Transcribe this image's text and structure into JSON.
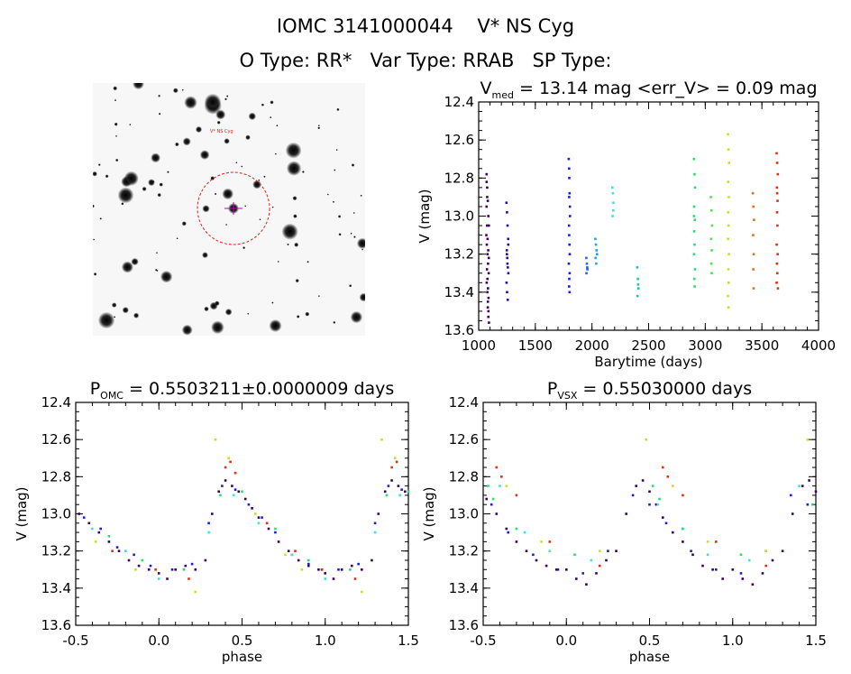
{
  "header": {
    "title": "IOMC 3141000044    V* NS Cyg",
    "subtitle": "O Type: RR*   Var Type: RRAB   SP Type:"
  },
  "finder": {
    "object_label": "V* NS Cyg"
  },
  "chart_data": [
    {
      "type": "scatter",
      "title_main": "V",
      "title_sub": "med",
      "title_rest": " = 13.14 mag <err_V> = 0.09 mag",
      "xlabel": "Barytime (days)",
      "ylabel": "V (mag)",
      "xlim": [
        1000,
        4000
      ],
      "ylim": [
        13.6,
        12.4
      ],
      "xticks": [
        "1000",
        "1500",
        "2000",
        "2500",
        "3000",
        "3500",
        "4000"
      ],
      "yticks": [
        "12.4",
        "12.6",
        "12.8",
        "13.0",
        "13.2",
        "13.4",
        "13.6"
      ],
      "series": [
        {
          "color": "#3c0060",
          "x": [
            1070,
            1075,
            1080,
            1085,
            1090,
            1068,
            1072,
            1078,
            1083,
            1088,
            1071,
            1076,
            1081,
            1086,
            1091,
            1069,
            1074,
            1079,
            1084,
            1089,
            1073,
            1077,
            1082,
            1087,
            1070,
            1075,
            1080,
            1085
          ],
          "y": [
            12.78,
            12.85,
            12.92,
            13.0,
            13.05,
            13.1,
            13.15,
            13.2,
            13.25,
            13.3,
            13.35,
            13.4,
            13.45,
            13.5,
            13.56,
            12.95,
            13.05,
            13.12,
            13.18,
            13.22,
            13.28,
            13.33,
            13.38,
            13.43,
            12.82,
            12.9,
            13.48,
            13.53
          ]
        },
        {
          "color": "#2a0aa0",
          "x": [
            1245,
            1250,
            1255,
            1260,
            1248,
            1252,
            1257,
            1262,
            1246,
            1251,
            1256,
            1261,
            1249,
            1254
          ],
          "y": [
            12.93,
            12.98,
            13.05,
            13.12,
            13.18,
            13.22,
            13.27,
            13.3,
            13.35,
            13.4,
            13.44,
            13.15,
            13.2,
            13.25
          ]
        },
        {
          "color": "#1d1dd8",
          "x": [
            1795,
            1798,
            1800,
            1802,
            1805,
            1797,
            1799,
            1801,
            1804,
            1796,
            1803,
            1800,
            1798,
            1802,
            1806,
            1799
          ],
          "y": [
            12.7,
            12.75,
            12.8,
            12.88,
            12.95,
            13.05,
            13.1,
            13.15,
            13.2,
            13.25,
            13.3,
            13.33,
            13.37,
            13.4,
            13.0,
            12.9
          ]
        },
        {
          "color": "#2060ff",
          "x": [
            1950,
            1955,
            1960,
            1952,
            1958
          ],
          "y": [
            13.22,
            13.25,
            13.28,
            13.3,
            13.27
          ]
        },
        {
          "color": "#22a0ff",
          "x": [
            2030,
            2035,
            2040,
            2032,
            2038,
            2045
          ],
          "y": [
            13.12,
            13.15,
            13.18,
            13.22,
            13.25,
            13.2
          ]
        },
        {
          "color": "#40e0e0",
          "x": [
            2180,
            2185,
            2190,
            2182,
            2188
          ],
          "y": [
            12.85,
            12.88,
            12.93,
            13.0,
            12.97
          ]
        },
        {
          "color": "#20c0c0",
          "x": [
            2400,
            2405,
            2410,
            2402,
            2408
          ],
          "y": [
            13.27,
            13.33,
            13.38,
            13.42,
            13.36
          ]
        },
        {
          "color": "#20e070",
          "x": [
            2900,
            2905,
            2910,
            2902,
            2908,
            2903,
            2906,
            2901,
            2909,
            2904,
            2907,
            2900
          ],
          "y": [
            12.7,
            12.78,
            12.85,
            12.95,
            13.02,
            13.08,
            13.15,
            13.2,
            13.28,
            13.33,
            13.37,
            13.0
          ]
        },
        {
          "color": "#50e050",
          "x": [
            3050,
            3055,
            3060,
            3052,
            3058,
            3054,
            3057
          ],
          "y": [
            12.9,
            12.97,
            13.05,
            13.12,
            13.18,
            13.25,
            13.3
          ]
        },
        {
          "color": "#c8e020",
          "x": [
            3200,
            3205,
            3210,
            3202,
            3208,
            3203,
            3206,
            3201,
            3209,
            3204,
            3207,
            3200,
            3205
          ],
          "y": [
            12.57,
            12.65,
            12.72,
            12.82,
            12.9,
            12.98,
            13.05,
            13.12,
            13.2,
            13.28,
            13.35,
            13.42,
            13.48
          ]
        },
        {
          "color": "#e07020",
          "x": [
            3420,
            3425,
            3430,
            3422,
            3428,
            3424,
            3427
          ],
          "y": [
            12.88,
            12.95,
            13.02,
            13.1,
            13.2,
            13.28,
            13.38
          ]
        },
        {
          "color": "#e03010",
          "x": [
            3630,
            3635,
            3640,
            3632,
            3638,
            3634,
            3637,
            3631,
            3639,
            3633,
            3636,
            3630,
            3641,
            3635
          ],
          "y": [
            12.67,
            12.72,
            12.78,
            12.85,
            12.92,
            12.98,
            13.05,
            13.15,
            13.2,
            13.25,
            13.3,
            13.35,
            13.38,
            12.88
          ]
        }
      ]
    },
    {
      "type": "scatter",
      "title_main": "P",
      "title_sub": "OMC",
      "title_rest": " = 0.5503211±0.0000009 days",
      "xlabel": "phase",
      "ylabel": "V (mag)",
      "xlim": [
        -0.5,
        1.5
      ],
      "ylim": [
        13.6,
        12.4
      ],
      "xticks": [
        "-0.5",
        "0.0",
        "0.5",
        "1.0",
        "1.5"
      ],
      "yticks": [
        "12.4",
        "12.6",
        "12.8",
        "13.0",
        "13.2",
        "13.4",
        "13.6"
      ],
      "series": [
        {
          "color": "#3c0060",
          "x": [
            -0.48,
            -0.42,
            -0.36,
            -0.3,
            -0.24,
            -0.18,
            -0.12,
            -0.06,
            0.0,
            0.05,
            0.1,
            0.16,
            0.22,
            0.28,
            0.32,
            0.36,
            0.4,
            0.44,
            0.48,
            0.52,
            0.56,
            0.6,
            0.66,
            0.72,
            0.78,
            0.84,
            0.9,
            0.96,
            1.0,
            1.05,
            1.1,
            1.16,
            1.22,
            1.28,
            1.32,
            1.36,
            1.4,
            1.44,
            1.48
          ],
          "y": [
            13.0,
            13.05,
            13.1,
            13.15,
            13.2,
            13.25,
            13.28,
            13.3,
            13.32,
            13.35,
            13.3,
            13.28,
            13.3,
            13.25,
            13.0,
            12.88,
            12.82,
            12.85,
            12.88,
            12.92,
            12.97,
            13.02,
            13.08,
            13.15,
            13.2,
            13.25,
            13.28,
            13.3,
            13.32,
            13.35,
            13.3,
            13.28,
            13.3,
            13.25,
            13.0,
            12.88,
            12.82,
            12.85,
            12.88
          ]
        },
        {
          "color": "#1d1dd8",
          "x": [
            -0.45,
            -0.35,
            -0.25,
            -0.15,
            -0.05,
            0.08,
            0.2,
            0.3,
            0.38,
            0.46,
            0.54,
            0.62,
            0.7,
            0.8,
            0.9,
            0.98,
            1.08,
            1.2,
            1.3,
            1.38,
            1.46
          ],
          "y": [
            13.02,
            13.08,
            13.18,
            13.22,
            13.28,
            13.3,
            13.27,
            13.05,
            12.85,
            12.87,
            12.95,
            13.02,
            13.1,
            13.22,
            13.27,
            13.3,
            13.3,
            13.27,
            13.05,
            12.85,
            12.87
          ]
        },
        {
          "color": "#40e0e0",
          "x": [
            -0.4,
            -0.2,
            0.0,
            0.3,
            0.45,
            0.6,
            0.8,
            1.0,
            1.3,
            1.45
          ],
          "y": [
            13.08,
            13.2,
            13.35,
            13.1,
            12.9,
            13.05,
            13.22,
            13.35,
            13.1,
            12.9
          ]
        },
        {
          "color": "#20e070",
          "x": [
            -0.3,
            -0.1,
            0.15,
            0.37,
            0.5,
            0.7,
            0.9,
            1.15,
            1.37,
            1.5
          ],
          "y": [
            13.12,
            13.25,
            13.3,
            12.9,
            12.88,
            13.08,
            13.25,
            13.3,
            12.9,
            12.88
          ]
        },
        {
          "color": "#c8e020",
          "x": [
            -0.38,
            -0.14,
            0.22,
            0.34,
            0.42,
            0.58,
            0.76,
            0.86,
            1.22,
            1.34,
            1.42
          ],
          "y": [
            13.15,
            13.3,
            13.42,
            12.6,
            12.7,
            13.0,
            13.22,
            13.3,
            13.42,
            12.6,
            12.7
          ]
        },
        {
          "color": "#e03010",
          "x": [
            -0.28,
            -0.02,
            0.18,
            0.4,
            0.43,
            0.46,
            0.65,
            0.82,
            0.98,
            1.18,
            1.4,
            1.43
          ],
          "y": [
            13.2,
            13.3,
            13.35,
            12.75,
            12.72,
            12.78,
            13.05,
            13.2,
            13.3,
            13.35,
            12.75,
            12.72
          ]
        }
      ]
    },
    {
      "type": "scatter",
      "title_main": "P",
      "title_sub": "VSX",
      "title_rest": " = 0.55030000 days",
      "xlabel": "phase",
      "ylabel": "V (mag)",
      "xlim": [
        -0.5,
        1.5
      ],
      "ylim": [
        13.6,
        12.4
      ],
      "xticks": [
        "-0.5",
        "0.0",
        "0.5",
        "1.0",
        "1.5"
      ],
      "yticks": [
        "12.4",
        "12.6",
        "12.8",
        "13.0",
        "13.2",
        "13.4",
        "13.6"
      ],
      "series": [
        {
          "color": "#3c0060",
          "x": [
            -0.48,
            -0.42,
            -0.36,
            -0.3,
            -0.24,
            -0.18,
            -0.12,
            -0.06,
            0.0,
            0.06,
            0.12,
            0.18,
            0.24,
            0.3,
            0.36,
            0.42,
            0.46,
            0.5,
            0.54,
            0.58,
            0.64,
            0.7,
            0.76,
            0.82,
            0.88,
            0.94,
            1.0,
            1.06,
            1.12,
            1.18,
            1.24,
            1.3,
            1.36,
            1.42,
            1.46,
            1.5
          ],
          "y": [
            12.92,
            13.0,
            13.08,
            13.15,
            13.2,
            13.25,
            13.28,
            13.3,
            13.3,
            13.35,
            13.38,
            13.32,
            13.25,
            13.2,
            13.0,
            12.85,
            12.82,
            12.88,
            12.95,
            13.02,
            13.1,
            13.15,
            13.22,
            13.28,
            13.3,
            13.35,
            13.3,
            13.35,
            13.38,
            13.32,
            13.25,
            13.2,
            13.0,
            12.85,
            12.82,
            12.88
          ]
        },
        {
          "color": "#1d1dd8",
          "x": [
            -0.45,
            -0.35,
            -0.2,
            -0.05,
            0.1,
            0.25,
            0.4,
            0.5,
            0.6,
            0.75,
            0.9,
            1.05,
            1.2,
            1.35,
            1.45
          ],
          "y": [
            12.95,
            13.1,
            13.22,
            13.3,
            13.32,
            13.2,
            12.9,
            12.95,
            13.05,
            13.2,
            13.3,
            13.32,
            13.2,
            12.9,
            12.95
          ]
        },
        {
          "color": "#40e0e0",
          "x": [
            -0.4,
            -0.25,
            -0.1,
            0.15,
            0.55,
            0.7,
            0.85,
            1.1,
            1.4
          ],
          "y": [
            12.85,
            13.1,
            13.2,
            13.25,
            12.95,
            13.08,
            13.22,
            13.25,
            12.85
          ]
        },
        {
          "color": "#20e070",
          "x": [
            -0.47,
            -0.44,
            -0.3,
            0.05,
            0.52,
            0.56,
            0.7,
            1.05,
            1.48
          ],
          "y": [
            12.85,
            12.92,
            13.08,
            13.22,
            12.85,
            12.92,
            13.08,
            13.22,
            12.95
          ]
        },
        {
          "color": "#c8e020",
          "x": [
            -0.36,
            -0.15,
            0.2,
            0.48,
            0.64,
            0.85,
            1.2,
            1.45
          ],
          "y": [
            12.85,
            13.15,
            13.2,
            12.6,
            12.85,
            13.15,
            13.2,
            12.6
          ]
        },
        {
          "color": "#e03010",
          "x": [
            -0.42,
            -0.39,
            -0.3,
            -0.1,
            0.2,
            0.58,
            0.61,
            0.7,
            0.9,
            1.2
          ],
          "y": [
            12.75,
            12.8,
            12.9,
            13.15,
            13.28,
            12.75,
            12.8,
            12.9,
            13.15,
            13.28
          ]
        }
      ]
    }
  ]
}
